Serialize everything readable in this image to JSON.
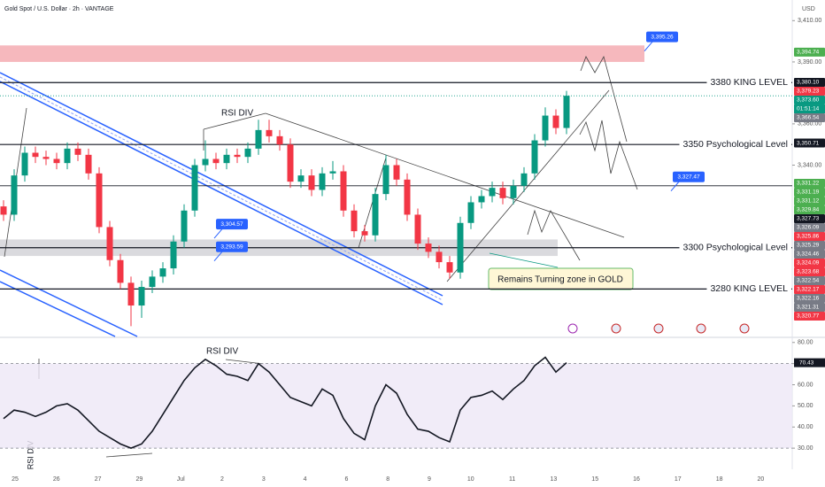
{
  "chart_data": {
    "type": "candlestick",
    "title": "Gold Spot / U.S. Dollar · 2h · VANTAGE",
    "currency": "USD",
    "up_color": "#089981",
    "down_color": "#f23645",
    "open": [
      3320,
      3316,
      3335,
      3346,
      3344,
      3343,
      3341,
      3348,
      3345,
      3336,
      3310,
      3294,
      3283,
      3272,
      3281,
      3286,
      3290,
      3303,
      3318,
      3340,
      3343,
      3341,
      3345,
      3344,
      3348,
      3357,
      3354,
      3350,
      3332,
      3335,
      3328,
      3336,
      3337,
      3318,
      3308,
      3306,
      3326,
      3340,
      3333,
      3316,
      3302,
      3298,
      3293,
      3288,
      3312,
      3322,
      3325,
      3329,
      3324,
      3330,
      3336,
      3352,
      3364,
      3358
    ],
    "high": [
      3323,
      3338,
      3349,
      3349,
      3347,
      3346,
      3351,
      3351,
      3348,
      3339,
      3313,
      3297,
      3286,
      3284,
      3289,
      3293,
      3306,
      3321,
      3343,
      3352,
      3346,
      3348,
      3348,
      3351,
      3362,
      3362,
      3357,
      3353,
      3338,
      3338,
      3339,
      3342,
      3340,
      3321,
      3311,
      3329,
      3345,
      3343,
      3336,
      3319,
      3305,
      3301,
      3296,
      3315,
      3325,
      3328,
      3332,
      3332,
      3333,
      3339,
      3355,
      3368,
      3367,
      3376
    ],
    "low": [
      3313,
      3313,
      3332,
      3341,
      3340,
      3338,
      3338,
      3342,
      3333,
      3307,
      3291,
      3280,
      3262,
      3266,
      3278,
      3283,
      3287,
      3300,
      3315,
      3337,
      3338,
      3338,
      3341,
      3341,
      3345,
      3351,
      3347,
      3329,
      3329,
      3325,
      3325,
      3333,
      3315,
      3305,
      3303,
      3303,
      3323,
      3330,
      3313,
      3299,
      3295,
      3290,
      3285,
      3285,
      3309,
      3319,
      3322,
      3321,
      3321,
      3327,
      3333,
      3349,
      3355,
      3355
    ],
    "close": [
      3316,
      3335,
      3346,
      3344,
      3343,
      3341,
      3348,
      3345,
      3336,
      3310,
      3294,
      3283,
      3272,
      3281,
      3286,
      3290,
      3303,
      3318,
      3340,
      3343,
      3341,
      3345,
      3344,
      3348,
      3357,
      3354,
      3350,
      3332,
      3335,
      3328,
      3336,
      3337,
      3318,
      3308,
      3306,
      3326,
      3340,
      3333,
      3316,
      3302,
      3298,
      3293,
      3288,
      3312,
      3322,
      3325,
      3329,
      3324,
      3330,
      3336,
      3352,
      3364,
      3358,
      3373.6
    ],
    "ylim": [
      3257,
      3420
    ],
    "yticks": [
      {
        "value": 3340,
        "label": "3,340.00"
      },
      {
        "value": 3360,
        "label": "3,360.00"
      },
      {
        "value": 3390,
        "label": "3,390.00"
      },
      {
        "value": 3410,
        "label": "3,410.00"
      }
    ],
    "zones": [
      {
        "from": 3390,
        "to": 3398,
        "color": "#f4a6ad"
      },
      {
        "from": 3296,
        "to": 3304,
        "color": "#d1d1d6"
      }
    ],
    "levels": [
      {
        "value": 3380,
        "label": "3380 KING LEVEL"
      },
      {
        "value": 3350,
        "label": "3350 Psychological Level"
      },
      {
        "value": 3330,
        "label": null
      },
      {
        "value": 3300,
        "label": "3300 Psychological Level"
      },
      {
        "value": 3280,
        "label": "3280 KING LEVEL"
      }
    ],
    "callouts": [
      {
        "value": 3395.26,
        "label": "3,395.26"
      },
      {
        "value": 3327.47,
        "label": "3,327.47"
      },
      {
        "value": 3304.57,
        "label": "3,304.57"
      },
      {
        "value": 3293.59,
        "label": "3,293.59"
      }
    ],
    "price_tags": [
      {
        "value": 3394.74,
        "label": "3,394.74",
        "color": "#4caf50"
      },
      {
        "value": 3380.1,
        "label": "3,380.10",
        "color": "#131722"
      },
      {
        "value": 3379.23,
        "label": "3,379.23",
        "color": "#f23645"
      },
      {
        "value": 3373.6,
        "label": "3,373.60",
        "color": "#089981"
      },
      {
        "value": 3366.54,
        "label": "3,366.54",
        "color": "#787b86"
      },
      {
        "value": 3350.71,
        "label": "3,350.71",
        "color": "#131722"
      },
      {
        "value": 3331.22,
        "label": "3,331.22",
        "color": "#4caf50"
      },
      {
        "value": 3331.19,
        "label": "3,331.19",
        "color": "#4caf50"
      },
      {
        "value": 3331.12,
        "label": "3,331.12",
        "color": "#4caf50"
      },
      {
        "value": 3329.84,
        "label": "3,329.84",
        "color": "#4caf50"
      },
      {
        "value": 3327.73,
        "label": "3,327.73",
        "color": "#131722"
      },
      {
        "value": 3326.09,
        "label": "3,326.09",
        "color": "#787b86"
      },
      {
        "value": 3325.86,
        "label": "3,325.86",
        "color": "#f23645"
      },
      {
        "value": 3325.29,
        "label": "3,325.29",
        "color": "#787b86"
      },
      {
        "value": 3324.46,
        "label": "3,324.46",
        "color": "#787b86"
      },
      {
        "value": 3324.09,
        "label": "3,324.09",
        "color": "#f23645"
      },
      {
        "value": 3323.68,
        "label": "3,323.68",
        "color": "#f23645"
      },
      {
        "value": 3322.54,
        "label": "3,322.54",
        "color": "#787b86"
      },
      {
        "value": 3322.17,
        "label": "3,322.17",
        "color": "#f23645"
      },
      {
        "value": 3322.16,
        "label": "3,322.16",
        "color": "#787b86"
      },
      {
        "value": 3321.31,
        "label": "3,321.31",
        "color": "#787b86"
      },
      {
        "value": 3320.77,
        "label": "3,320.77",
        "color": "#f23645"
      }
    ],
    "countdown": "01:51:14",
    "annotations": [
      "RSI DIV",
      "Remains Turning zone in GOLD"
    ],
    "rsi": {
      "values": [
        44,
        48,
        47,
        45,
        47,
        50,
        51,
        48,
        43,
        38,
        35,
        32,
        30,
        32,
        38,
        46,
        54,
        62,
        68,
        72,
        69,
        65,
        64,
        62,
        70,
        66,
        60,
        54,
        52,
        50,
        58,
        55,
        44,
        37,
        34,
        50,
        60,
        56,
        46,
        39,
        38,
        35,
        33,
        48,
        54,
        55,
        57,
        53,
        58,
        62,
        69,
        73,
        66,
        70.43
      ],
      "value_labels_last": "70.43",
      "ylim": [
        20,
        82
      ],
      "yticks": [
        {
          "value": 30,
          "label": "30.00"
        },
        {
          "value": 40,
          "label": "40.00"
        },
        {
          "value": 50,
          "label": "50.00"
        },
        {
          "value": 60,
          "label": "60.00"
        },
        {
          "value": 70,
          "label": "70.00"
        },
        {
          "value": 80,
          "label": "80.00"
        }
      ],
      "band": [
        30,
        70
      ],
      "annotations": [
        "RSI DIV",
        "RSI DIV"
      ]
    },
    "dates": [
      "25",
      "26",
      "27",
      "29",
      "Jul",
      "2",
      "3",
      "4",
      "6",
      "8",
      "9",
      "10",
      "11",
      "13",
      "15",
      "16",
      "17",
      "18",
      "20"
    ]
  }
}
